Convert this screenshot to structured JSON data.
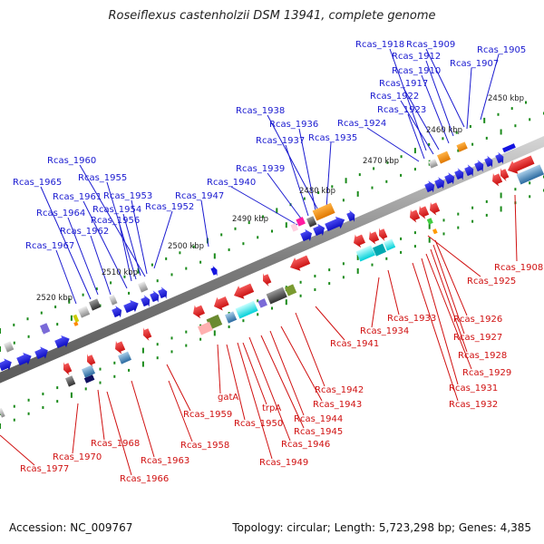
{
  "title": "Roseiflexus castenholzii DSM 13941, complete genome",
  "footer": {
    "accession": "Accession: NC_009767",
    "stats": "Topology: circular; Length: 5,723,298 bp; Genes: 4,385"
  },
  "colors": {
    "forward_label": "#1a1ad0",
    "reverse_label": "#d01010",
    "forward_gene": "#1414e0",
    "reverse_gene": "#ee1010",
    "backbone": "#8a8a8a",
    "tick": "#1a8a1a"
  },
  "scale_labels": [
    "2450 kbp",
    "2460 kbp",
    "2470 kbp",
    "2480 kbp",
    "2490 kbp",
    "2500 kbp",
    "2510 kbp",
    "2520 kbp"
  ],
  "forward_labels": [
    "Rcas_1918",
    "Rcas_1909",
    "Rcas_1905",
    "Rcas_1912",
    "Rcas_1907",
    "Rcas_1910",
    "Rcas_1917",
    "Rcas_1922",
    "Rcas_1923",
    "Rcas_1924",
    "Rcas_1938",
    "Rcas_1936",
    "Rcas_1937",
    "Rcas_1935",
    "Rcas_1939",
    "Rcas_1940",
    "Rcas_1947",
    "Rcas_1960",
    "Rcas_1955",
    "Rcas_1965",
    "Rcas_1961",
    "Rcas_1953",
    "Rcas_1954",
    "Rcas_1964",
    "Rcas_1956",
    "Rcas_1952",
    "Rcas_1962",
    "Rcas_1967"
  ],
  "reverse_labels": [
    "Rcas_1908",
    "Rcas_1925",
    "Rcas_1926",
    "Rcas_1927",
    "Rcas_1928",
    "Rcas_1929",
    "Rcas_1931",
    "Rcas_1932",
    "Rcas_1933",
    "Rcas_1934",
    "Rcas_1941",
    "Rcas_1942",
    "Rcas_1943",
    "Rcas_1944",
    "Rcas_1945",
    "Rcas_1946",
    "Rcas_1949",
    "gatA",
    "trpA",
    "Rcas_1950",
    "Rcas_1959",
    "Rcas_1958",
    "Rcas_1963",
    "Rcas_1966",
    "Rcas_1968",
    "Rcas_1970",
    "Rcas_1977"
  ]
}
